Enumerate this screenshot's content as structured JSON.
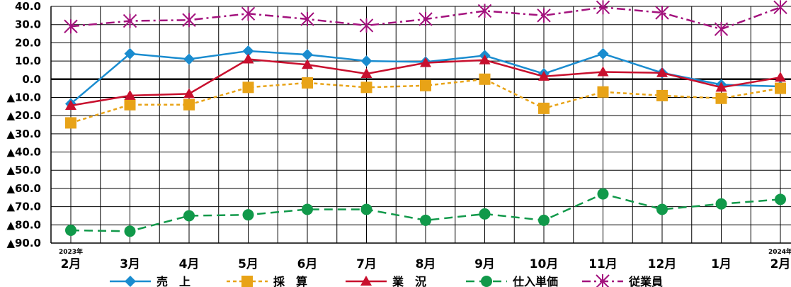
{
  "chart_data": {
    "type": "line",
    "categories": [
      "2月",
      "3月",
      "4月",
      "5月",
      "6月",
      "7月",
      "8月",
      "9月",
      "10月",
      "11月",
      "12月",
      "1月",
      "2月"
    ],
    "category_year_labels": {
      "0": "2023年",
      "12": "2024年"
    },
    "ylim": [
      -90,
      40
    ],
    "yticks": [
      40,
      30,
      20,
      10,
      0,
      -10,
      -20,
      -30,
      -40,
      -50,
      -60,
      -70,
      -80,
      -90
    ],
    "ytick_labels": [
      "40.0",
      "30.0",
      "20.0",
      "10.0",
      "0.0",
      "▲10.0",
      "▲20.0",
      "▲30.0",
      "▲40.0",
      "▲50.0",
      "▲60.0",
      "▲70.0",
      "▲80.0",
      "▲90.0"
    ],
    "grid": true,
    "legend_position": "bottom",
    "series": [
      {
        "name": "売　上",
        "color": "#1a8ccf",
        "marker": "diamond",
        "dash": "solid",
        "values": [
          -13.5,
          14,
          11,
          15.5,
          13.5,
          10,
          9.5,
          13,
          3,
          14,
          3.5,
          -3,
          -4
        ]
      },
      {
        "name": "採　算",
        "color": "#e8a317",
        "marker": "square",
        "dash": "dashed",
        "values": [
          -24,
          -14,
          -14,
          -4.5,
          -2,
          -4.5,
          -3.5,
          0,
          -16,
          -7,
          -9,
          -10.5,
          -5
        ]
      },
      {
        "name": "業　況",
        "color": "#c8102e",
        "marker": "triangle",
        "dash": "solid",
        "values": [
          -14.5,
          -9,
          -8,
          11,
          8,
          3,
          9,
          10.5,
          1.5,
          4,
          3.5,
          -4.5,
          1
        ]
      },
      {
        "name": "仕入単価",
        "color": "#11994a",
        "marker": "circle",
        "dash": "longdash",
        "values": [
          -83,
          -83.5,
          -75,
          -74.5,
          -71.5,
          -71.5,
          -77.5,
          -74,
          -77.5,
          -63,
          -71.5,
          -68.5,
          -66
        ]
      },
      {
        "name": "従業員",
        "color": "#a3127d",
        "marker": "asterisk",
        "dash": "dashdot",
        "values": [
          29,
          32,
          32.5,
          36,
          33,
          29.5,
          33,
          37.5,
          35,
          39.5,
          36.5,
          27.5,
          39.5
        ]
      }
    ]
  }
}
